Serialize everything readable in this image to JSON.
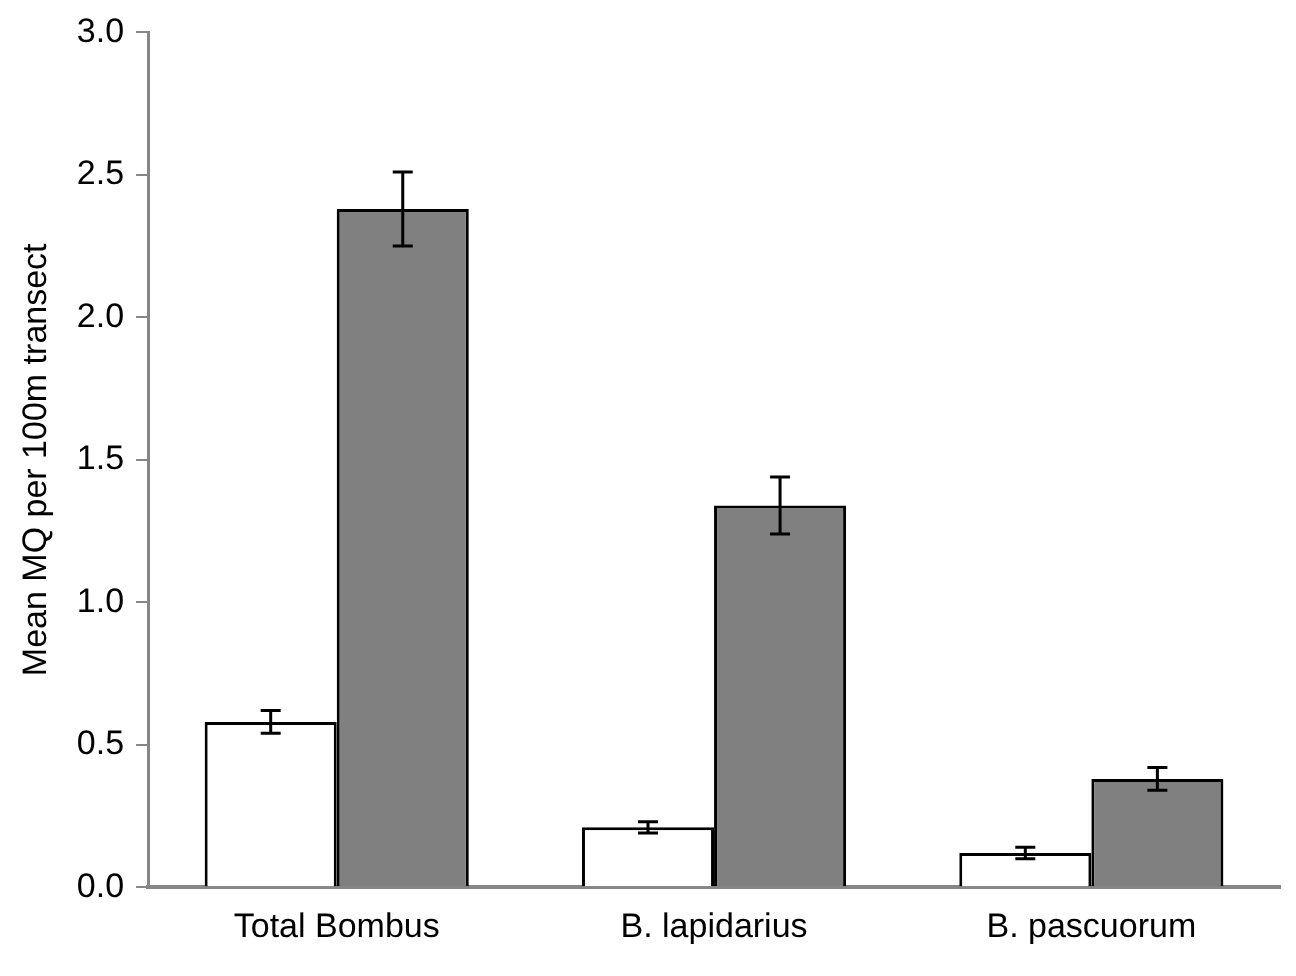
{
  "chart_data": {
    "type": "bar",
    "ylabel": "Mean MQ per 100m transect",
    "categories": [
      "Total Bombus",
      "B. lapidarius",
      "B. pascuorum"
    ],
    "series": [
      {
        "color": "#ffffff",
        "values": [
          0.58,
          0.21,
          0.12
        ],
        "errors": [
          0.04,
          0.02,
          0.02
        ]
      },
      {
        "color": "#808080",
        "values": [
          2.38,
          1.34,
          0.38
        ],
        "errors": [
          0.13,
          0.1,
          0.04
        ]
      }
    ],
    "ylim": [
      0,
      3
    ],
    "yticks": [
      {
        "value": 0,
        "label": "0.0"
      },
      {
        "value": 0.5,
        "label": "0.5"
      },
      {
        "value": 1,
        "label": "1.0"
      },
      {
        "value": 1.5,
        "label": "1.5"
      },
      {
        "value": 2,
        "label": "2.0"
      },
      {
        "value": 2.5,
        "label": "2.5"
      },
      {
        "value": 3,
        "label": "3.0"
      }
    ],
    "grid": false,
    "legend": false
  }
}
